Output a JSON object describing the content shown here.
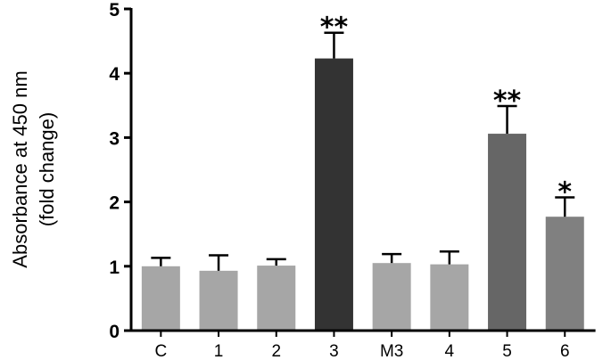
{
  "chart_data": {
    "type": "bar",
    "categories": [
      "C",
      "1",
      "2",
      "3",
      "M3",
      "4",
      "5",
      "6"
    ],
    "values": [
      1.0,
      0.93,
      1.01,
      4.23,
      1.05,
      1.03,
      3.06,
      1.77
    ],
    "errors": [
      0.13,
      0.24,
      0.1,
      0.4,
      0.14,
      0.2,
      0.43,
      0.3
    ],
    "significance": [
      "",
      "",
      "",
      "**",
      "",
      "",
      "**",
      "*"
    ],
    "bar_colors": [
      "#a6a6a6",
      "#a6a6a6",
      "#a6a6a6",
      "#333333",
      "#a6a6a6",
      "#a6a6a6",
      "#666666",
      "#808080"
    ],
    "ylabel_line1": "Absorbance at 450 nm",
    "ylabel_line2": "(fold change)",
    "xlabel": "",
    "ylim": [
      0,
      5
    ],
    "yticks": [
      "0",
      "1",
      "2",
      "3",
      "4",
      "5"
    ],
    "grid": false,
    "legend": "none"
  }
}
